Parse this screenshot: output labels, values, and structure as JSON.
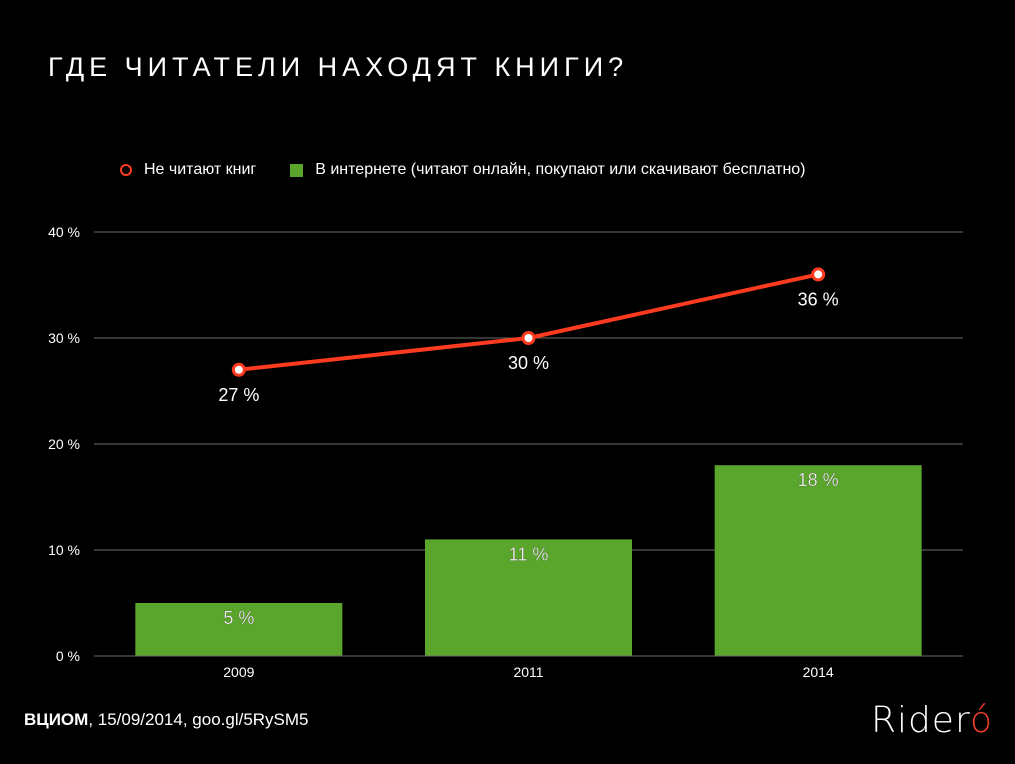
{
  "slide": {
    "title": "ГДЕ ЧИТАТЕЛИ НАХОДЯТ КНИГИ?",
    "source": "ВЦИОМ",
    "source_rest": ", 15/09/2014, goo.gl/5RySM5",
    "logo": "Ridero"
  },
  "colors": {
    "background": "#000000",
    "line": "#ff3b1f",
    "bar": "#5aa52b",
    "grid": "#6b6b6b",
    "text": "#ffffff"
  },
  "chart_data": {
    "type": "bar",
    "categories": [
      "2009",
      "2011",
      "2014"
    ],
    "series": [
      {
        "name": "В интернете (читают онлайн, покупают или скачивают бесплатно)",
        "type": "bar",
        "values": [
          5,
          11,
          18
        ],
        "labels": [
          "5 %",
          "11 %",
          "18 %"
        ]
      },
      {
        "name": "Не читают книг",
        "type": "line",
        "values": [
          27,
          30,
          36
        ],
        "labels": [
          "27 %",
          "30 %",
          "36 %"
        ]
      }
    ],
    "ylim": [
      0,
      40
    ],
    "yticks": [
      0,
      10,
      20,
      30,
      40
    ],
    "ytick_labels": [
      "0 %",
      "10 %",
      "20 %",
      "30 %",
      "40 %"
    ],
    "grid": true,
    "legend_position": "top",
    "xlabel": "",
    "ylabel": ""
  }
}
